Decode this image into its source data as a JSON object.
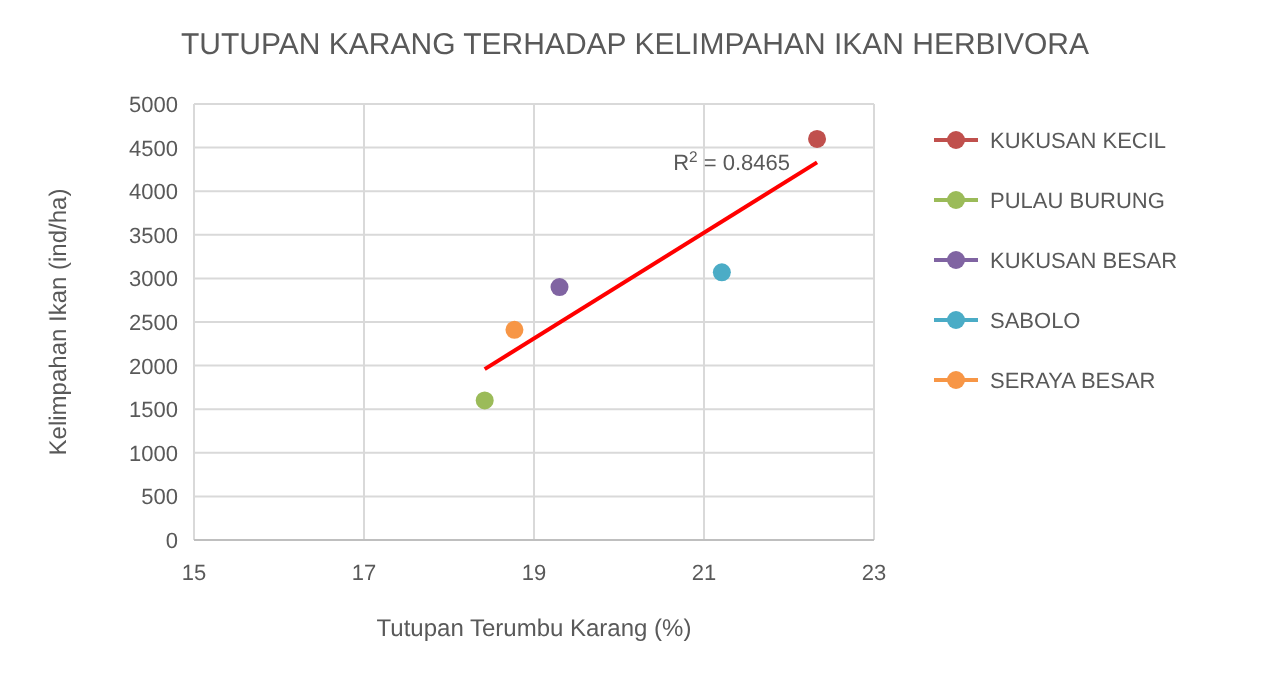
{
  "chart_data": {
    "type": "scatter",
    "title": "TUTUPAN KARANG TERHADAP KELIMPAHAN IKAN HERBIVORA",
    "xlabel": "Tutupan Terumbu Karang (%)",
    "ylabel": "Kelimpahan Ikan (ind/ha)",
    "xlim": [
      15,
      23
    ],
    "xticks": [
      15,
      17,
      19,
      21,
      23
    ],
    "ylim": [
      0,
      5000
    ],
    "yticks": [
      0,
      500,
      1000,
      1500,
      2000,
      2500,
      3000,
      3500,
      4000,
      4500,
      5000
    ],
    "grid": true,
    "legend": "right",
    "marker": "circle",
    "series": [
      {
        "name": "KUKUSAN KECIL",
        "color": "#c0504d",
        "x": [
          22.33
        ],
        "values": [
          4600
        ]
      },
      {
        "name": "PULAU BURUNG",
        "color": "#9bbb59",
        "x": [
          18.42
        ],
        "values": [
          1600
        ]
      },
      {
        "name": "KUKUSAN BESAR",
        "color": "#8064a2",
        "x": [
          19.3
        ],
        "values": [
          2900
        ]
      },
      {
        "name": "SABOLO",
        "color": "#4bacc6",
        "x": [
          21.21
        ],
        "values": [
          3070
        ]
      },
      {
        "name": "SERAYA BESAR",
        "color": "#f79646",
        "x": [
          18.77
        ],
        "values": [
          2410
        ]
      },
      {
        "type": "line",
        "color": "#ff0000",
        "marker": "none",
        "x": [
          18.42,
          22.33
        ],
        "values": [
          1960,
          4330
        ]
      }
    ],
    "annotations": [
      "R$^{2}$ = 0.8465"
    ]
  }
}
